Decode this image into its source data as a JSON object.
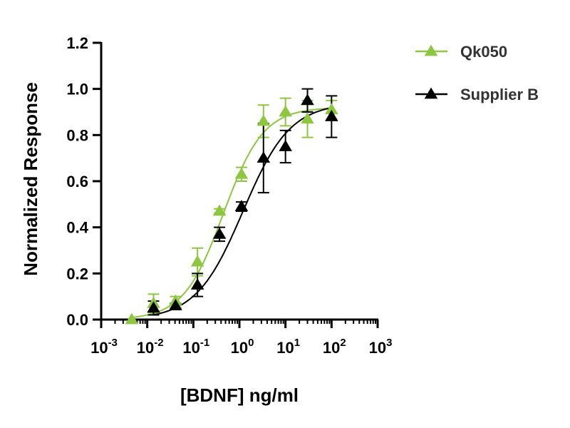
{
  "chart_data": {
    "type": "scatter",
    "title": "",
    "xlabel": "[BDNF] ng/ml",
    "ylabel": "Normalized Response",
    "x_scale": "log",
    "xlim": [
      0.001,
      1000
    ],
    "ylim": [
      0,
      1.2
    ],
    "x_ticks": [
      {
        "value": 0.001,
        "base": "10",
        "exp": "-3"
      },
      {
        "value": 0.01,
        "base": "10",
        "exp": "-2"
      },
      {
        "value": 0.1,
        "base": "10",
        "exp": "-1"
      },
      {
        "value": 1,
        "base": "10",
        "exp": "0"
      },
      {
        "value": 10,
        "base": "10",
        "exp": "1"
      },
      {
        "value": 100,
        "base": "10",
        "exp": "2"
      },
      {
        "value": 1000,
        "base": "10",
        "exp": "3"
      }
    ],
    "y_ticks": [
      {
        "value": 0,
        "label": "0.0"
      },
      {
        "value": 0.2,
        "label": "0.2"
      },
      {
        "value": 0.4,
        "label": "0.4"
      },
      {
        "value": 0.6,
        "label": "0.6"
      },
      {
        "value": 0.8,
        "label": "0.8"
      },
      {
        "value": 1.0,
        "label": "1.0"
      },
      {
        "value": 1.2,
        "label": "1.2"
      }
    ],
    "grid": false,
    "legend_position": "top-right",
    "series": [
      {
        "name": "Qk050",
        "color": "#8dc63f",
        "marker": "triangle",
        "x": [
          0.0046,
          0.0137,
          0.0412,
          0.123,
          0.37,
          1.11,
          3.33,
          10,
          30,
          100
        ],
        "y": [
          0.0,
          0.07,
          0.08,
          0.25,
          0.47,
          0.63,
          0.86,
          0.9,
          0.87,
          0.91
        ],
        "err": [
          0.0,
          0.04,
          0.02,
          0.06,
          0.01,
          0.03,
          0.07,
          0.06,
          0.08,
          0.04
        ],
        "fit": {
          "bottom": 0.0,
          "top": 0.92,
          "ec50": 0.45,
          "hill": 1.0
        }
      },
      {
        "name": "Supplier B",
        "color": "#000000",
        "marker": "triangle",
        "x": [
          0.0137,
          0.0412,
          0.123,
          0.37,
          1.11,
          3.33,
          10,
          30,
          100
        ],
        "y": [
          0.05,
          0.06,
          0.15,
          0.37,
          0.49,
          0.7,
          0.75,
          0.95,
          0.88
        ],
        "err": [
          0.03,
          0.01,
          0.05,
          0.03,
          0.02,
          0.15,
          0.07,
          0.05,
          0.09
        ],
        "fit": {
          "bottom": 0.0,
          "top": 0.94,
          "ec50": 1.2,
          "hill": 0.85
        }
      }
    ]
  }
}
